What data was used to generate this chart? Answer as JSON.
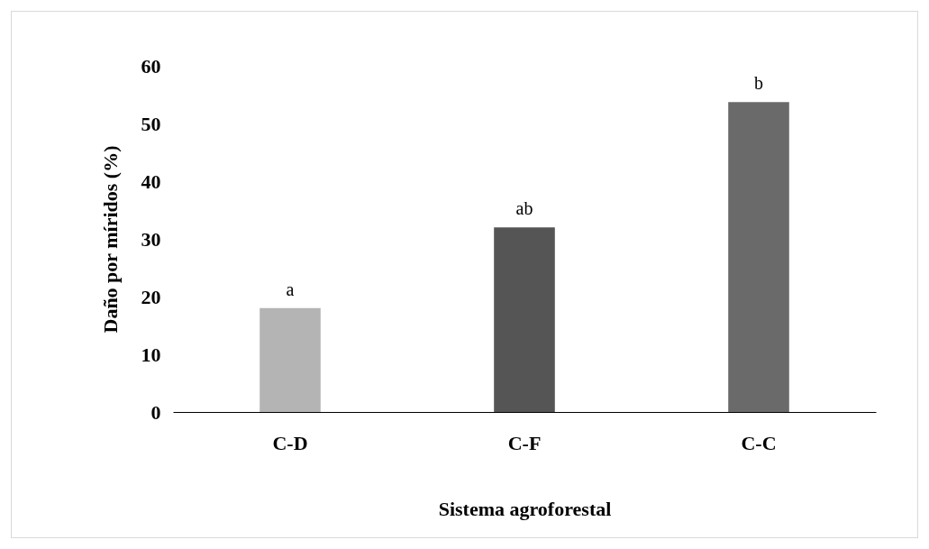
{
  "chart_data": {
    "type": "bar",
    "xlabel": "Sistema agroforestal",
    "ylabel": "Daño por míridos (%)",
    "categories": [
      "C-D",
      "C-F",
      "C-C"
    ],
    "values": [
      18,
      32,
      53.7
    ],
    "colors": [
      "#b4b4b4",
      "#555555",
      "#6a6a6a"
    ],
    "ylim": [
      0,
      60
    ],
    "yticks": [
      0,
      10,
      20,
      30,
      40,
      50,
      60
    ],
    "grid": false,
    "annotations": [
      {
        "text": "a",
        "x": "C-D",
        "y": 18
      },
      {
        "text": "ab",
        "x": "C-F",
        "y": 32
      },
      {
        "text": "b",
        "x": "C-C",
        "y": 53.7
      }
    ]
  }
}
